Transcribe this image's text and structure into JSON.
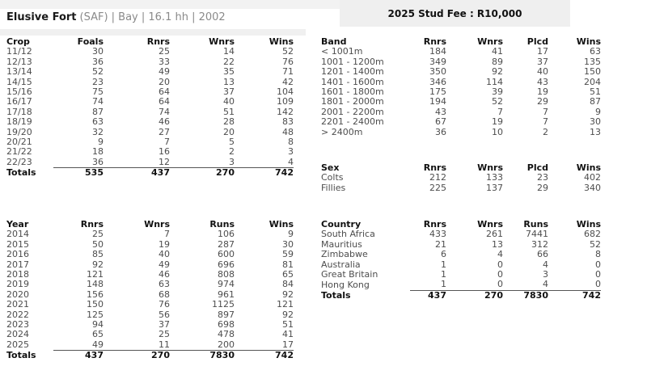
{
  "header": {
    "horse_name": "Elusive Fort",
    "horse_details": "(SAF) | Bay | 16.1 hh | 2002",
    "stud_fee_label": "2025 Stud Fee : R10,000"
  },
  "colors": {
    "banner_gray": "#efefef",
    "strip_gray": "#f2f2f2",
    "heading_text": "#111111",
    "data_text": "#4d4d4d"
  },
  "tables": {
    "crop": {
      "columns": [
        "Crop",
        "Foals",
        "Rnrs",
        "Wnrs",
        "Wins"
      ],
      "rows": [
        [
          "11/12",
          "30",
          "25",
          "14",
          "52"
        ],
        [
          "12/13",
          "36",
          "33",
          "22",
          "76"
        ],
        [
          "13/14",
          "52",
          "49",
          "35",
          "71"
        ],
        [
          "14/15",
          "23",
          "20",
          "13",
          "42"
        ],
        [
          "15/16",
          "75",
          "64",
          "37",
          "104"
        ],
        [
          "16/17",
          "74",
          "64",
          "40",
          "109"
        ],
        [
          "17/18",
          "87",
          "74",
          "51",
          "142"
        ],
        [
          "18/19",
          "63",
          "46",
          "28",
          "83"
        ],
        [
          "19/20",
          "32",
          "27",
          "20",
          "48"
        ],
        [
          "20/21",
          "9",
          "7",
          "5",
          "8"
        ],
        [
          "21/22",
          "18",
          "16",
          "2",
          "3"
        ],
        [
          "22/23",
          "36",
          "12",
          "3",
          "4"
        ]
      ],
      "totals": [
        "Totals",
        "535",
        "437",
        "270",
        "742"
      ]
    },
    "band": {
      "columns": [
        "Band",
        "Rnrs",
        "Wnrs",
        "Plcd",
        "Wins"
      ],
      "rows": [
        [
          "< 1001m",
          "184",
          "41",
          "17",
          "63"
        ],
        [
          "1001 - 1200m",
          "349",
          "89",
          "37",
          "135"
        ],
        [
          "1201 - 1400m",
          "350",
          "92",
          "40",
          "150"
        ],
        [
          "1401 - 1600m",
          "346",
          "114",
          "43",
          "204"
        ],
        [
          "1601 - 1800m",
          "175",
          "39",
          "19",
          "51"
        ],
        [
          "1801 - 2000m",
          "194",
          "52",
          "29",
          "87"
        ],
        [
          "2001 - 2200m",
          "43",
          "7",
          "7",
          "9"
        ],
        [
          "2201 - 2400m",
          "67",
          "19",
          "7",
          "30"
        ],
        [
          "> 2400m",
          "36",
          "10",
          "2",
          "13"
        ]
      ]
    },
    "sex": {
      "columns": [
        "Sex",
        "Rnrs",
        "Wnrs",
        "Plcd",
        "Wins"
      ],
      "rows": [
        [
          "Colts",
          "212",
          "133",
          "23",
          "402"
        ],
        [
          "Fillies",
          "225",
          "137",
          "29",
          "340"
        ]
      ]
    },
    "year": {
      "columns": [
        "Year",
        "Rnrs",
        "Wnrs",
        "Runs",
        "Wins"
      ],
      "rows": [
        [
          "2014",
          "25",
          "7",
          "106",
          "9"
        ],
        [
          "2015",
          "50",
          "19",
          "287",
          "30"
        ],
        [
          "2016",
          "85",
          "40",
          "600",
          "59"
        ],
        [
          "2017",
          "92",
          "49",
          "696",
          "81"
        ],
        [
          "2018",
          "121",
          "46",
          "808",
          "65"
        ],
        [
          "2019",
          "148",
          "63",
          "974",
          "84"
        ],
        [
          "2020",
          "156",
          "68",
          "961",
          "92"
        ],
        [
          "2021",
          "150",
          "76",
          "1125",
          "121"
        ],
        [
          "2022",
          "125",
          "56",
          "897",
          "92"
        ],
        [
          "2023",
          "94",
          "37",
          "698",
          "51"
        ],
        [
          "2024",
          "65",
          "25",
          "478",
          "41"
        ],
        [
          "2025",
          "49",
          "11",
          "200",
          "17"
        ]
      ],
      "totals": [
        "Totals",
        "437",
        "270",
        "7830",
        "742"
      ]
    },
    "country": {
      "columns": [
        "Country",
        "Rnrs",
        "Wnrs",
        "Runs",
        "Wins"
      ],
      "rows": [
        [
          "South Africa",
          "433",
          "261",
          "7441",
          "682"
        ],
        [
          "Mauritius",
          "21",
          "13",
          "312",
          "52"
        ],
        [
          "Zimbabwe",
          "6",
          "4",
          "66",
          "8"
        ],
        [
          "Australia",
          "1",
          "0",
          "4",
          "0"
        ],
        [
          "Great Britain",
          "1",
          "0",
          "3",
          "0"
        ],
        [
          "Hong Kong",
          "1",
          "0",
          "4",
          "0"
        ]
      ],
      "totals": [
        "Totals",
        "437",
        "270",
        "7830",
        "742"
      ]
    }
  }
}
